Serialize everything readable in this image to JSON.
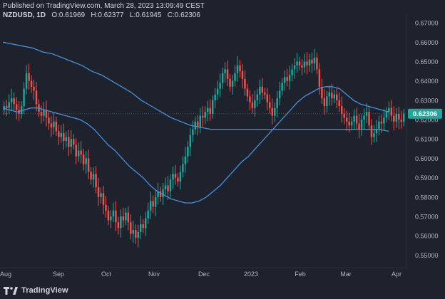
{
  "header": {
    "published": "Published on TradingView.com, March 28, 2023 13:09:49 CEST",
    "symbol": "NZDUSD, 1D",
    "ohlc": [
      {
        "label": "O:",
        "value": "0.61969"
      },
      {
        "label": "H:",
        "value": "0.62377"
      },
      {
        "label": "L:",
        "value": "0.61945"
      },
      {
        "label": "C:",
        "value": "0.62306"
      }
    ]
  },
  "brand": {
    "name": "TradingView",
    "logo_icon": "tradingview-logo-icon"
  },
  "colors": {
    "background": "#1e222d",
    "up": "#26a69a",
    "down": "#ef5350",
    "ma": "#4a90d9",
    "axis_text": "#b2b5be",
    "last_price_badge": "#26a69a",
    "grid": "#2a2e39"
  },
  "chart_data": {
    "type": "candlestick",
    "symbol": "NZDUSD",
    "timeframe": "1D",
    "ylim": [
      0.545,
      0.6715
    ],
    "y_ticks": [
      "0.67000",
      "0.66000",
      "0.65000",
      "0.64000",
      "0.63000",
      "0.62000",
      "0.61000",
      "0.60000",
      "0.59000",
      "0.58000",
      "0.57000",
      "0.56000",
      "0.55000"
    ],
    "x_ticks": [
      "Aug",
      "Sep",
      "Oct",
      "Nov",
      "Dec",
      "2023",
      "Feb",
      "Mar",
      "Apr"
    ],
    "last_price": "0.62306",
    "grid": false,
    "approx_closes": [
      0.627,
      0.626,
      0.629,
      0.631,
      0.628,
      0.625,
      0.623,
      0.627,
      0.636,
      0.644,
      0.64,
      0.637,
      0.635,
      0.628,
      0.624,
      0.622,
      0.625,
      0.621,
      0.618,
      0.616,
      0.619,
      0.614,
      0.611,
      0.613,
      0.609,
      0.611,
      0.606,
      0.61,
      0.607,
      0.601,
      0.604,
      0.602,
      0.597,
      0.6,
      0.593,
      0.589,
      0.592,
      0.585,
      0.58,
      0.582,
      0.576,
      0.573,
      0.568,
      0.57,
      0.573,
      0.567,
      0.564,
      0.57,
      0.568,
      0.572,
      0.567,
      0.561,
      0.563,
      0.559,
      0.562,
      0.566,
      0.564,
      0.569,
      0.573,
      0.578,
      0.575,
      0.58,
      0.583,
      0.58,
      0.584,
      0.586,
      0.583,
      0.589,
      0.592,
      0.59,
      0.588,
      0.593,
      0.597,
      0.601,
      0.606,
      0.612,
      0.615,
      0.619,
      0.616,
      0.622,
      0.621,
      0.624,
      0.626,
      0.623,
      0.63,
      0.633,
      0.636,
      0.639,
      0.644,
      0.646,
      0.641,
      0.637,
      0.64,
      0.644,
      0.648,
      0.645,
      0.641,
      0.636,
      0.632,
      0.629,
      0.626,
      0.63,
      0.633,
      0.637,
      0.634,
      0.633,
      0.629,
      0.626,
      0.622,
      0.626,
      0.631,
      0.635,
      0.639,
      0.642,
      0.64,
      0.643,
      0.646,
      0.648,
      0.65,
      0.648,
      0.647,
      0.65,
      0.648,
      0.651,
      0.649,
      0.652,
      0.646,
      0.637,
      0.631,
      0.627,
      0.632,
      0.634,
      0.631,
      0.633,
      0.63,
      0.627,
      0.623,
      0.621,
      0.619,
      0.617,
      0.619,
      0.622,
      0.618,
      0.615,
      0.62,
      0.622,
      0.624,
      0.617,
      0.611,
      0.613,
      0.615,
      0.619,
      0.618,
      0.621,
      0.624,
      0.626,
      0.622,
      0.619,
      0.623,
      0.62,
      0.619,
      0.623
    ],
    "ma_fast_approx": [
      0.626,
      0.625,
      0.624,
      0.625,
      0.626,
      0.626,
      0.625,
      0.624,
      0.623,
      0.622,
      0.621,
      0.62,
      0.618,
      0.615,
      0.611,
      0.607,
      0.604,
      0.6,
      0.596,
      0.593,
      0.59,
      0.586,
      0.583,
      0.581,
      0.579,
      0.578,
      0.577,
      0.577,
      0.578,
      0.58,
      0.583,
      0.586,
      0.59,
      0.594,
      0.598,
      0.601,
      0.605,
      0.609,
      0.613,
      0.617,
      0.621,
      0.625,
      0.629,
      0.632,
      0.634,
      0.636,
      0.637,
      0.637,
      0.636,
      0.633,
      0.63,
      0.628,
      0.627,
      0.626,
      0.625,
      0.624
    ],
    "ma_slow_approx": [
      0.66,
      0.659,
      0.658,
      0.657,
      0.655,
      0.654,
      0.652,
      0.65,
      0.648,
      0.645,
      0.643,
      0.64,
      0.637,
      0.634,
      0.63,
      0.627,
      0.624,
      0.621,
      0.619,
      0.617,
      0.616,
      0.615,
      0.615,
      0.615,
      0.615,
      0.615,
      0.615,
      0.615,
      0.615,
      0.615,
      0.615,
      0.615,
      0.615,
      0.615,
      0.615,
      0.615,
      0.615,
      0.615,
      0.615,
      0.614
    ]
  }
}
